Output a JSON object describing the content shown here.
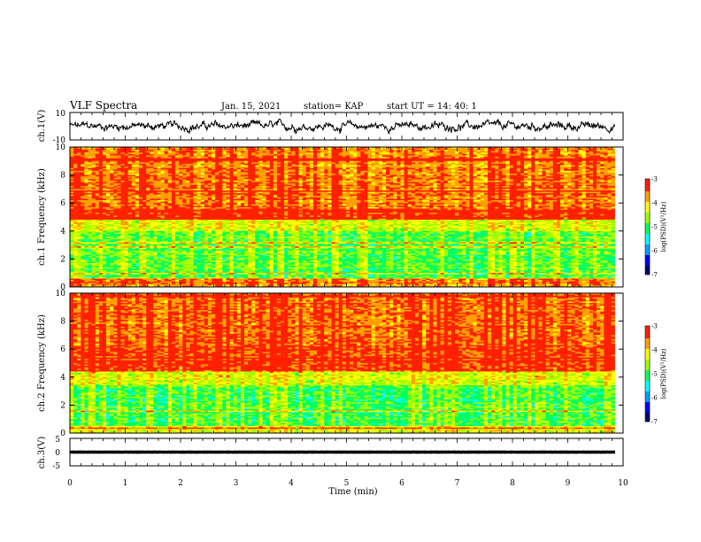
{
  "header": {
    "title": "VLF Spectra",
    "date": "Jan. 15, 2021",
    "station": "station= KAP",
    "start": "start UT = 14: 40: 1"
  },
  "colors": {
    "waveform": "#000000",
    "colormap": [
      "#000070",
      "#0000ff",
      "#00a0ff",
      "#00ffff",
      "#00ff60",
      "#a0ff00",
      "#ffff00",
      "#ffa000",
      "#ff2000",
      "#ffffff"
    ]
  },
  "chart_data": [
    {
      "type": "line",
      "title": "",
      "ylabel": "ch.1(V)",
      "xlabel": "",
      "xlim": [
        0,
        10
      ],
      "ylim": [
        -10,
        10
      ],
      "yticks": [
        "10",
        "-10"
      ],
      "data_extent_min": 9.85,
      "series": [
        {
          "values_description_mean": 0,
          "approx_range": [
            -6,
            6
          ]
        }
      ]
    },
    {
      "type": "heatmap",
      "ylabel": "ch.1 Frequency (kHz)",
      "xlim": [
        0,
        10
      ],
      "ylim": [
        0,
        10
      ],
      "yticks": [
        "0",
        "2",
        "4",
        "6",
        "8",
        "10"
      ],
      "colorbar": {
        "label": "log(PSD)(V²/Hz)",
        "range": [
          -7,
          -3
        ],
        "ticks": [
          "-3",
          "-4",
          "-5",
          "-6",
          "-7"
        ]
      },
      "bands_log_psd": [
        {
          "f": [
            0,
            0.6
          ],
          "v": -3.6
        },
        {
          "f": [
            0.6,
            4.0
          ],
          "v": -4.8
        },
        {
          "f": [
            4.0,
            4.8
          ],
          "v": -4.3
        },
        {
          "f": [
            4.8,
            5.6
          ],
          "v": -3.2
        },
        {
          "f": [
            5.6,
            10
          ],
          "v": -3.6
        }
      ]
    },
    {
      "type": "heatmap",
      "ylabel": "ch.2 Frequency (kHz)",
      "xlim": [
        0,
        10
      ],
      "ylim": [
        0,
        10
      ],
      "yticks": [
        "0",
        "2",
        "4",
        "6",
        "8",
        "10"
      ],
      "colorbar": {
        "label": "log(PSD)(V²/Hz)",
        "range": [
          -7,
          -3
        ],
        "ticks": [
          "-3",
          "-4",
          "-5",
          "-6",
          "-7"
        ]
      },
      "bands_log_psd": [
        {
          "f": [
            0,
            0.5
          ],
          "v": -4.2
        },
        {
          "f": [
            0.5,
            3.4
          ],
          "v": -4.9
        },
        {
          "f": [
            3.4,
            4.4
          ],
          "v": -4.3
        },
        {
          "f": [
            4.4,
            6.3
          ],
          "v": -3.3
        },
        {
          "f": [
            6.3,
            10
          ],
          "v": -3.5
        }
      ]
    },
    {
      "type": "line",
      "ylabel": "ch.3(V)",
      "xlabel": "Time (min)",
      "xlim": [
        0,
        10
      ],
      "ylim": [
        -5,
        5
      ],
      "yticks": [
        "5",
        "0",
        "-5"
      ],
      "xticks": [
        "0",
        "1",
        "2",
        "3",
        "4",
        "5",
        "6",
        "7",
        "8",
        "9",
        "10"
      ],
      "data_extent_min": 9.85,
      "series": [
        {
          "approx_range": [
            -0.6,
            0.6
          ]
        }
      ]
    }
  ]
}
